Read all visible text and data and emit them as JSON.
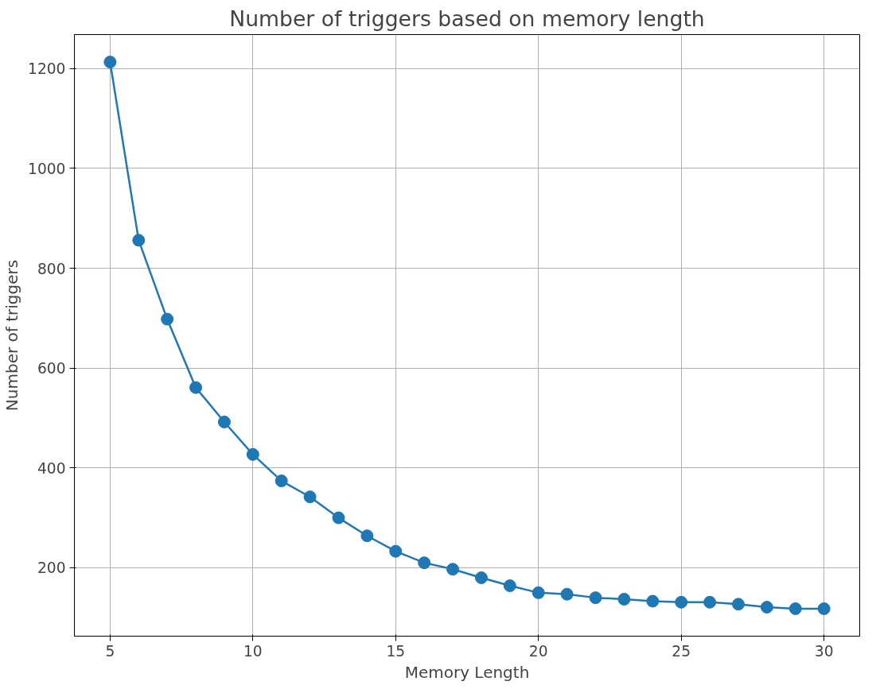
{
  "chart_data": {
    "type": "line",
    "title": "Number of triggers based on memory length",
    "xlabel": "Memory Length",
    "ylabel": "Number of triggers",
    "x": [
      5,
      6,
      7,
      8,
      9,
      10,
      11,
      12,
      13,
      14,
      15,
      16,
      17,
      18,
      19,
      20,
      21,
      22,
      23,
      24,
      25,
      26,
      27,
      28,
      29,
      30
    ],
    "series": [
      {
        "color": "#1f77b4",
        "values": [
          1213,
          856,
          698,
          561,
          492,
          427,
          374,
          342,
          300,
          264,
          233,
          210,
          197,
          180,
          164,
          150,
          147,
          140,
          137,
          133,
          131,
          131,
          127,
          121,
          118,
          118
        ]
      }
    ],
    "xlim": [
      3.75,
      31.25
    ],
    "ylim": [
      63,
      1268
    ],
    "xticks": [
      5,
      10,
      15,
      20,
      25,
      30
    ],
    "yticks": [
      200,
      400,
      600,
      800,
      1000,
      1200
    ],
    "grid": true,
    "marker": "circle",
    "line_style": "solid"
  }
}
